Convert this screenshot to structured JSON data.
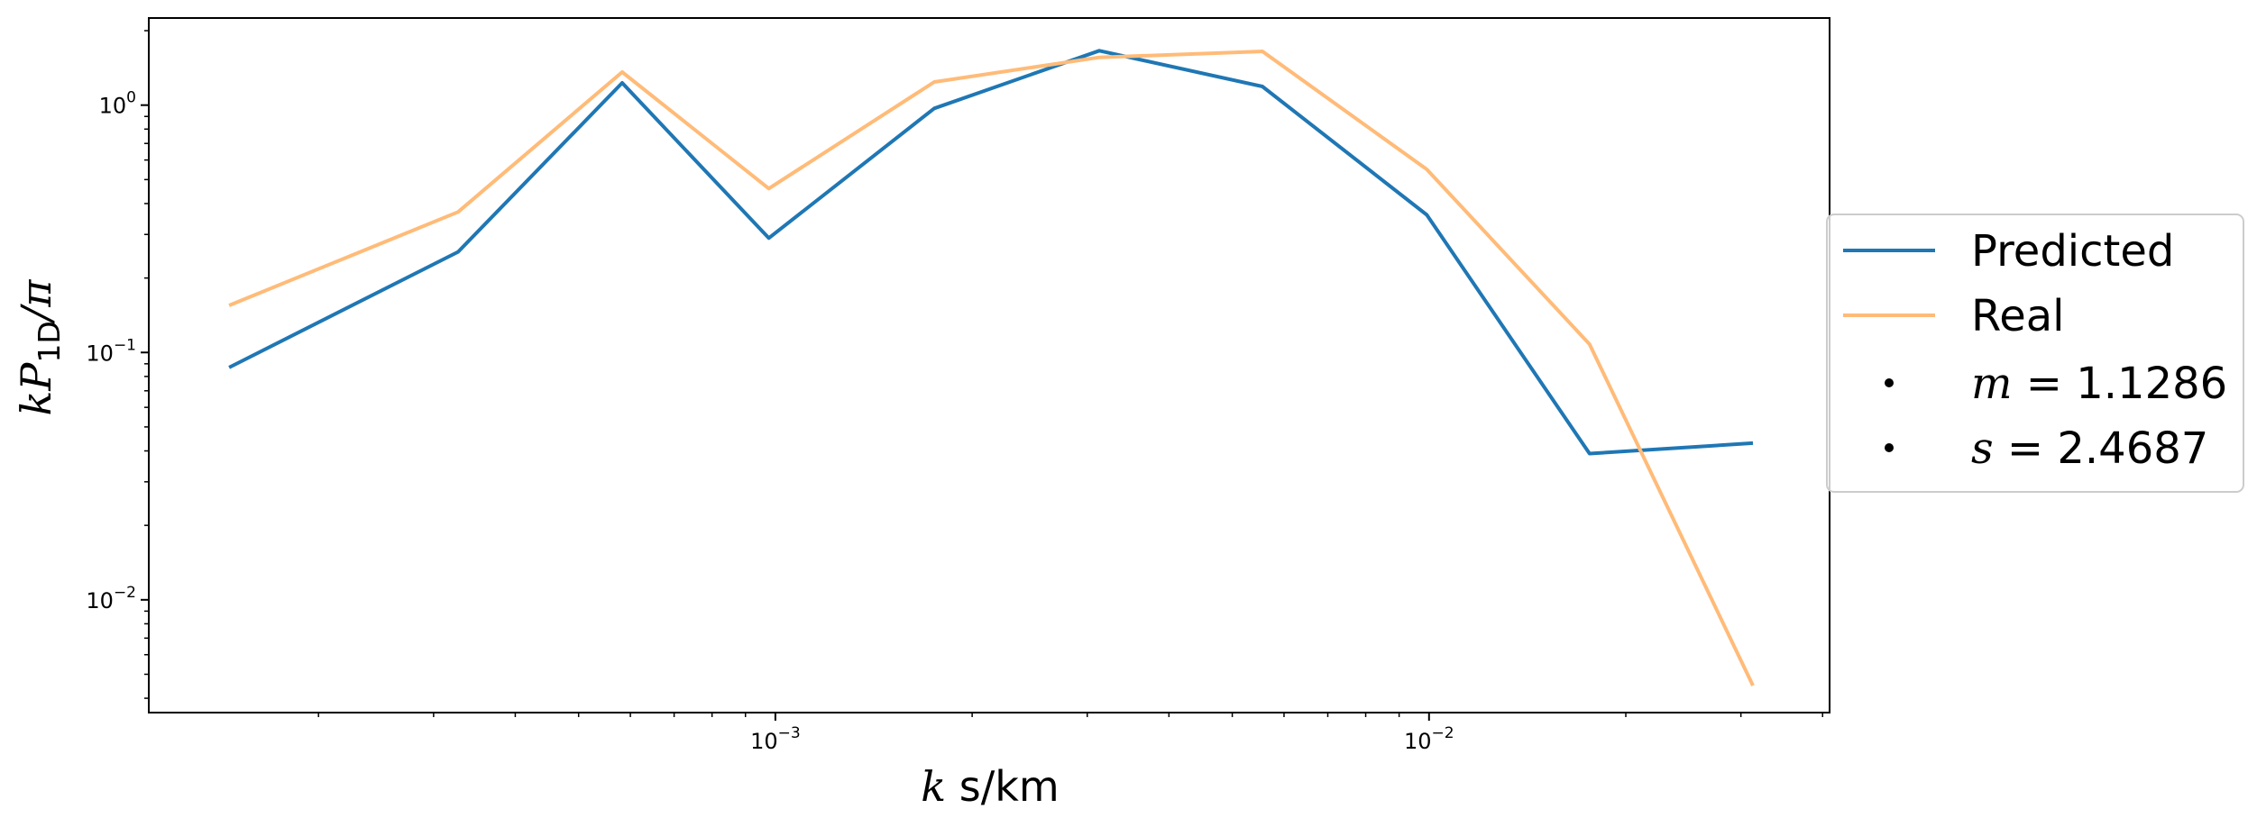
{
  "chart_data": {
    "type": "line",
    "title": "",
    "x_scale": "log",
    "y_scale": "log",
    "xlim": [
      0.00011,
      0.041
    ],
    "ylim": [
      0.0035,
      2.25
    ],
    "xlabel": {
      "var": "k",
      "unit": " s/km"
    },
    "ylabel": {
      "main": "kP",
      "sub": "1D",
      "tail": "/π"
    },
    "x_major_ticks": [
      {
        "value": 0.001,
        "base": "10",
        "exp": "−3"
      },
      {
        "value": 0.01,
        "base": "10",
        "exp": "−2"
      }
    ],
    "y_major_ticks": [
      {
        "value": 0.01,
        "base": "10",
        "exp": "−2"
      },
      {
        "value": 0.1,
        "base": "10",
        "exp": "−1"
      },
      {
        "value": 1,
        "base": "10",
        "exp": "0"
      }
    ],
    "grid": false,
    "legend_position": "right",
    "series": [
      {
        "name": "Predicted",
        "color": "#1f77b4",
        "x": [
          0.000146,
          0.000327,
          0.000583,
          0.000977,
          0.00175,
          0.00313,
          0.00556,
          0.00992,
          0.0176,
          0.0313
        ],
        "y": [
          0.087,
          0.255,
          1.23,
          0.29,
          0.97,
          1.66,
          1.19,
          0.36,
          0.039,
          0.043
        ]
      },
      {
        "name": "Real",
        "color": "#ffbb78",
        "x": [
          0.000146,
          0.000327,
          0.000583,
          0.000977,
          0.00175,
          0.00313,
          0.00556,
          0.00992,
          0.0176,
          0.0313
        ],
        "y": [
          0.155,
          0.37,
          1.36,
          0.46,
          1.24,
          1.56,
          1.65,
          0.55,
          0.108,
          0.0045
        ]
      }
    ],
    "legend_extra": [
      {
        "var": "m",
        "value": " = 1.1286"
      },
      {
        "var": "s",
        "value": " = 2.4687"
      }
    ]
  }
}
